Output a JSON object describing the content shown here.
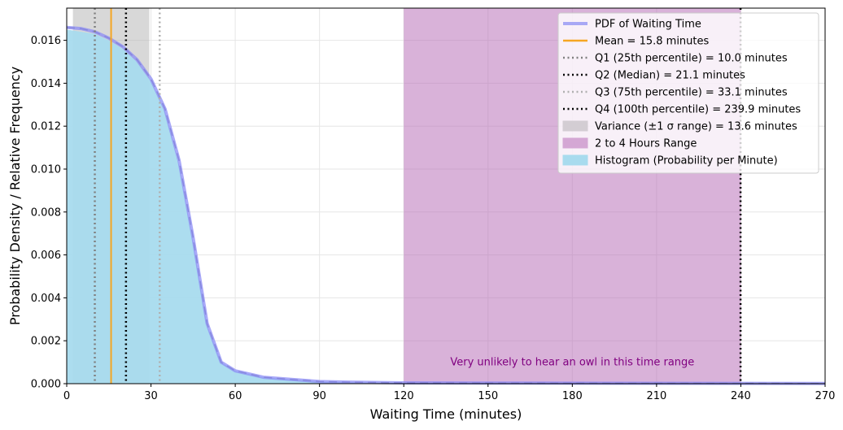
{
  "chart_data": {
    "type": "area",
    "title": "",
    "xlabel": "Waiting Time (minutes)",
    "ylabel": "Probability Density / Relative Frequency",
    "xlim": [
      0,
      270
    ],
    "ylim": [
      0,
      0.0175
    ],
    "xticks": [
      0,
      30,
      60,
      90,
      120,
      150,
      180,
      210,
      240,
      270
    ],
    "yticks": [
      0.0,
      0.002,
      0.004,
      0.006,
      0.008,
      0.01,
      0.012,
      0.014,
      0.016
    ],
    "grid": true,
    "legend_position": "top-right",
    "series": [
      {
        "name": "PDF of Waiting Time",
        "kind": "line",
        "color": "#8c8cf5",
        "x": [
          0,
          5,
          10,
          15,
          20,
          25,
          30,
          35,
          40,
          45,
          50,
          55,
          60,
          70,
          80,
          90,
          100,
          120,
          150,
          200,
          270
        ],
        "y": [
          0.0166,
          0.01655,
          0.0164,
          0.0161,
          0.0157,
          0.0151,
          0.0142,
          0.0128,
          0.0104,
          0.0068,
          0.0028,
          0.001,
          0.0006,
          0.0003,
          0.0002,
          0.0001,
          7e-05,
          4e-05,
          3e-05,
          2e-05,
          1e-05
        ]
      },
      {
        "name": "Histogram (Probability per Minute)",
        "kind": "area",
        "color": "#a8dbee",
        "x": [
          0,
          5,
          10,
          15,
          20,
          25,
          30,
          35,
          40,
          45,
          50,
          55,
          60,
          70,
          80,
          90,
          100,
          120,
          150,
          200,
          270
        ],
        "y": [
          0.0165,
          0.0164,
          0.0163,
          0.016,
          0.0156,
          0.015,
          0.0141,
          0.0127,
          0.0102,
          0.0066,
          0.0027,
          0.001,
          0.0006,
          0.0003,
          0.0002,
          0.0001,
          7e-05,
          4e-05,
          3e-05,
          2e-05,
          1e-05
        ]
      }
    ],
    "vlines": [
      {
        "name": "Mean = 15.8 minutes",
        "x": 15.8,
        "color": "#f5a623",
        "style": "solid"
      },
      {
        "name": "Q1 (25th percentile) = 10.0 minutes",
        "x": 10.0,
        "color": "#808080",
        "style": "dotted"
      },
      {
        "name": "Q2 (Median) = 21.1 minutes",
        "x": 21.1,
        "color": "#000000",
        "style": "dotted"
      },
      {
        "name": "Q3 (75th percentile) = 33.1 minutes",
        "x": 33.1,
        "color": "#b0b0b0",
        "style": "dotted"
      },
      {
        "name": "Q4 (100th percentile) = 239.9 minutes",
        "x": 239.9,
        "color": "#000000",
        "style": "dotted"
      }
    ],
    "spans": [
      {
        "name": "Variance (±1 σ range) = 13.6 minutes",
        "x0": 2.2,
        "x1": 29.4,
        "color": "#b8b8b8",
        "opacity": 0.55
      },
      {
        "name": "2 to 4 Hours Range",
        "x0": 120,
        "x1": 240,
        "color": "#b366b3",
        "opacity": 0.5
      }
    ],
    "annotation": {
      "text": "Very unlikely to hear an owl in this time range",
      "x": 180,
      "y": 0.001,
      "color": "#800080"
    },
    "legend": [
      {
        "label": "PDF of Waiting Time",
        "kind": "line",
        "color": "#a8a8f5",
        "style": "solid"
      },
      {
        "label": "Mean = 15.8 minutes",
        "kind": "line",
        "color": "#f5a623",
        "style": "solid"
      },
      {
        "label": "Q1 (25th percentile) = 10.0 minutes",
        "kind": "line",
        "color": "#808080",
        "style": "dotted"
      },
      {
        "label": "Q2 (Median) = 21.1 minutes",
        "kind": "line",
        "color": "#000000",
        "style": "dotted"
      },
      {
        "label": "Q3 (75th percentile) = 33.1 minutes",
        "kind": "line",
        "color": "#b0b0b0",
        "style": "dotted"
      },
      {
        "label": "Q4 (100th percentile) = 239.9 minutes",
        "kind": "line",
        "color": "#000000",
        "style": "dotted"
      },
      {
        "label": "Variance (±1 σ range) = 13.6 minutes",
        "kind": "patch",
        "color": "#d3cdd3"
      },
      {
        "label": "2 to 4 Hours Range",
        "kind": "patch",
        "color": "#d4a7d4"
      },
      {
        "label": "Histogram (Probability per Minute)",
        "kind": "patch",
        "color": "#a8dbee"
      }
    ]
  }
}
